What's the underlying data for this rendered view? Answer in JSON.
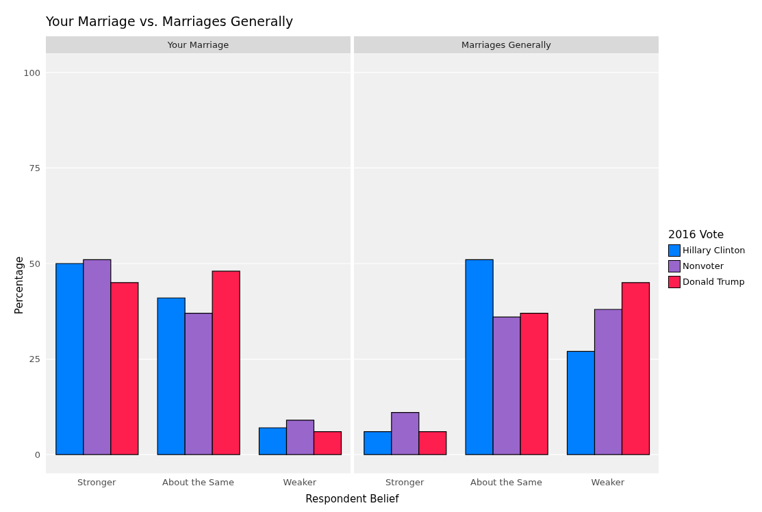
{
  "chart_data": [
    {
      "type": "bar",
      "title": "Your Marriage vs. Marriages Generally",
      "subtitle": "Your Marriage",
      "legend_title": "2016 Vote",
      "legend": "right",
      "xlabel": "Respondent Belief",
      "ylabel": "Percentage",
      "categories": [
        "Stronger",
        "About the Same",
        "Weaker"
      ],
      "series": [
        {
          "name": "Hillary Clinton",
          "color": "#0080ff",
          "values": [
            50,
            41,
            7
          ]
        },
        {
          "name": "Nonvoter",
          "color": "#9966cc",
          "values": [
            51,
            37,
            9
          ]
        },
        {
          "name": "Donald Trump",
          "color": "#ff1f4f",
          "values": [
            45,
            48,
            6
          ]
        }
      ],
      "ylim": [
        -5,
        105
      ],
      "yticks": [
        0,
        25,
        50,
        75,
        100
      ],
      "grid": "y"
    },
    {
      "type": "bar",
      "subtitle": "Marriages Generally",
      "categories": [
        "Stronger",
        "About the Same",
        "Weaker"
      ],
      "series": [
        {
          "color": "#0080ff",
          "values": [
            6,
            51,
            27
          ]
        },
        {
          "color": "#9966cc",
          "values": [
            11,
            36,
            38
          ]
        },
        {
          "color": "#ff1f4f",
          "values": [
            6,
            37,
            45
          ]
        }
      ],
      "ylim": [
        -5,
        105
      ],
      "yticks": [
        0,
        25,
        50,
        75,
        100
      ],
      "grid": "y",
      "tick_labels": "x"
    }
  ]
}
